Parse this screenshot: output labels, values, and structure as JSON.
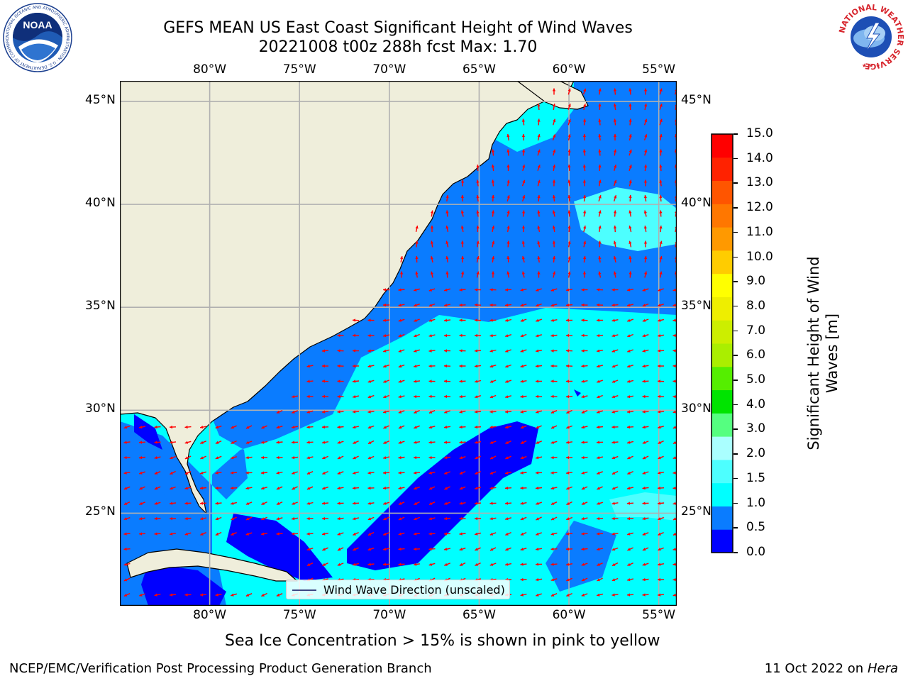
{
  "title": {
    "line1": "GEFS MEAN US East Coast Significant Height of Wind Waves",
    "line2": "20221008 t00z 288h fcst   Max: 1.70"
  },
  "map": {
    "lon_labels": [
      "80°W",
      "75°W",
      "70°W",
      "65°W",
      "60°W",
      "55°W"
    ],
    "lat_labels": [
      "45°N",
      "40°N",
      "35°N",
      "30°N",
      "25°N"
    ],
    "legend_label": "Wind Wave Direction (unscaled)",
    "arrow_color": "#ff0000",
    "land_color": "#efeedb"
  },
  "colorbar": {
    "label": "Significant Height of Wind Waves [m]",
    "label_line1": "Significant Height of Wind",
    "label_line2": "Waves [m]",
    "ticks": [
      "0.0",
      "0.5",
      "1.0",
      "1.5",
      "2.0",
      "3.0",
      "4.0",
      "5.0",
      "6.0",
      "7.0",
      "8.0",
      "9.0",
      "10.0",
      "11.0",
      "12.0",
      "13.0",
      "14.0",
      "15.0"
    ],
    "colors": [
      "#0000ff",
      "#0a7cff",
      "#00ffff",
      "#4dffff",
      "#aaffff",
      "#55ff80",
      "#00e400",
      "#55ee00",
      "#aaee00",
      "#ccee00",
      "#eeee00",
      "#ffff00",
      "#ffcc00",
      "#ff9900",
      "#ff7700",
      "#ff5500",
      "#ff2200",
      "#ff0000"
    ]
  },
  "chart_data": {
    "type": "heatmap",
    "variable": "Significant Height of Wind Waves",
    "units": "m",
    "max": 1.7,
    "lon_range": [
      -85,
      -54
    ],
    "lat_range": [
      20.5,
      46
    ],
    "color_levels": [
      0.0,
      0.5,
      1.0,
      1.5,
      2.0,
      3.0,
      4.0,
      5.0,
      6.0,
      7.0,
      8.0,
      9.0,
      10.0,
      11.0,
      12.0,
      13.0,
      14.0,
      15.0
    ],
    "grid": true
  },
  "note": "Sea Ice Concentration > 15% is shown in pink to yellow",
  "footer": {
    "left": "NCEP/EMC/Verification Post Processing Product Generation Branch",
    "right_date": "11 Oct 2022 on ",
    "right_host": "Hera"
  },
  "logos": {
    "noaa": "NOAA",
    "noaa_ring": "NATIONAL OCEANIC AND ATMOSPHERIC ADMINISTRATION · U.S. DEPARTMENT OF COMMERCE",
    "nws_ring": "NATIONAL WEATHER SERVICE"
  }
}
